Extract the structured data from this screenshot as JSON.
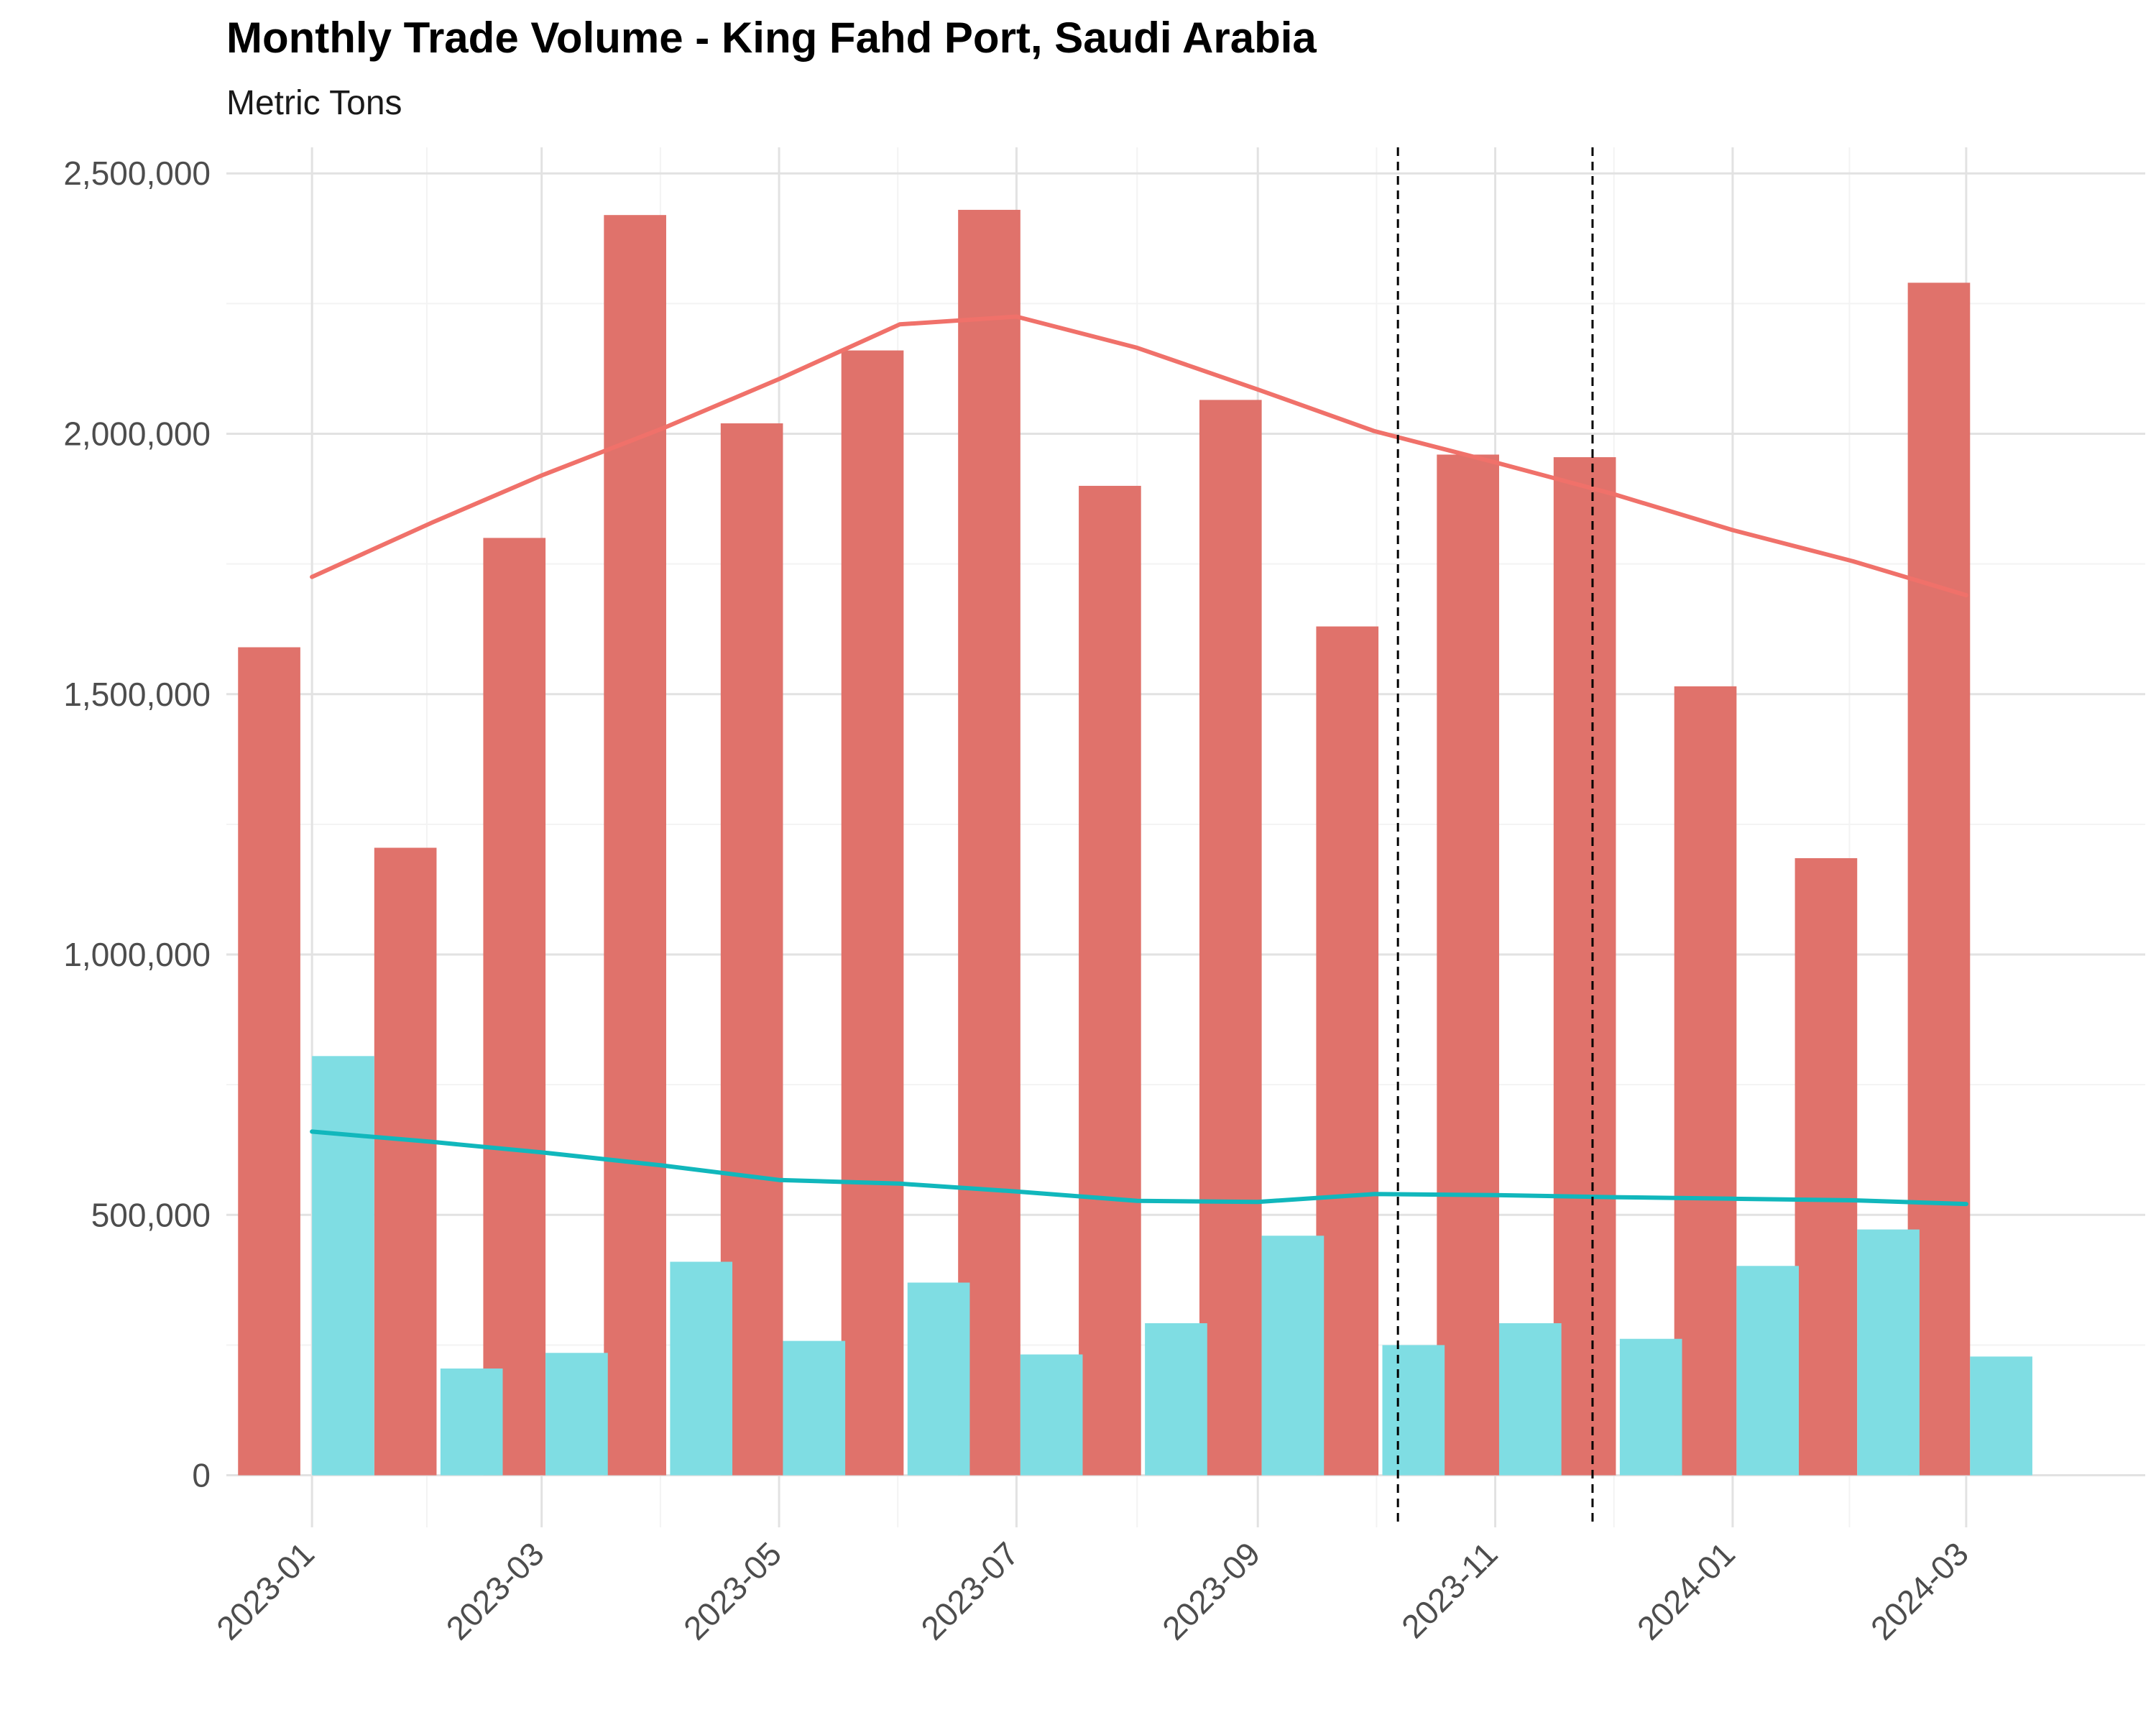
{
  "chart_data": {
    "type": "bar",
    "title": "Monthly Trade Volume - King Fahd Port, Saudi Arabia",
    "subtitle": "Metric Tons",
    "xlabel": "",
    "ylabel": "",
    "ylim": [
      -100000,
      2550000
    ],
    "yticks": [
      0,
      500000,
      1000000,
      1500000,
      2000000,
      2500000
    ],
    "ytick_labels": [
      "0",
      "500,000",
      "1,000,000",
      "1,500,000",
      "2,000,000",
      "2,500,000"
    ],
    "xlim": [
      "2022-12-10",
      "2024-04-16"
    ],
    "xticks": [
      "2023-01-01",
      "2023-03-01",
      "2023-05-01",
      "2023-07-01",
      "2023-09-01",
      "2023-11-01",
      "2024-01-01",
      "2024-03-01"
    ],
    "xtick_labels": [
      "2023-01",
      "2023-03",
      "2023-05",
      "2023-07",
      "2023-09",
      "2023-11",
      "2024-01",
      "2024-03"
    ],
    "grid": true,
    "legend": "none",
    "series": [
      {
        "color": "#e0726b",
        "bars": [
          {
            "date": "2022-12-21",
            "value": 1590000
          },
          {
            "date": "2023-01-25",
            "value": 1205000
          },
          {
            "date": "2023-02-22",
            "value": 1800000
          },
          {
            "date": "2023-03-25",
            "value": 2420000
          },
          {
            "date": "2023-04-24",
            "value": 2020000
          },
          {
            "date": "2023-05-25",
            "value": 2160000
          },
          {
            "date": "2023-06-24",
            "value": 2430000
          },
          {
            "date": "2023-07-25",
            "value": 1900000
          },
          {
            "date": "2023-08-25",
            "value": 2065000
          },
          {
            "date": "2023-09-24",
            "value": 1630000
          },
          {
            "date": "2023-10-25",
            "value": 1960000
          },
          {
            "date": "2023-11-24",
            "value": 1955000
          },
          {
            "date": "2023-12-25",
            "value": 1515000
          },
          {
            "date": "2024-01-25",
            "value": 1185000
          },
          {
            "date": "2024-02-23",
            "value": 2290000
          }
        ],
        "trend": [
          {
            "date": "2023-01-01",
            "value": 1725000
          },
          {
            "date": "2023-02-01",
            "value": 1830000
          },
          {
            "date": "2023-03-01",
            "value": 1920000
          },
          {
            "date": "2023-04-01",
            "value": 2010000
          },
          {
            "date": "2023-05-01",
            "value": 2105000
          },
          {
            "date": "2023-06-01",
            "value": 2210000
          },
          {
            "date": "2023-07-01",
            "value": 2225000
          },
          {
            "date": "2023-08-01",
            "value": 2165000
          },
          {
            "date": "2023-09-01",
            "value": 2085000
          },
          {
            "date": "2023-10-01",
            "value": 2005000
          },
          {
            "date": "2023-11-01",
            "value": 1945000
          },
          {
            "date": "2023-12-01",
            "value": 1885000
          },
          {
            "date": "2024-01-01",
            "value": 1815000
          },
          {
            "date": "2024-02-01",
            "value": 1755000
          },
          {
            "date": "2024-03-01",
            "value": 1690000
          }
        ]
      },
      {
        "color": "#7fdde3",
        "trend_color": "#11b7bc",
        "bars": [
          {
            "date": "2023-01-09",
            "value": 805000
          },
          {
            "date": "2023-02-11",
            "value": 205000
          },
          {
            "date": "2023-03-10",
            "value": 235000
          },
          {
            "date": "2023-04-11",
            "value": 410000
          },
          {
            "date": "2023-05-10",
            "value": 258000
          },
          {
            "date": "2023-06-11",
            "value": 370000
          },
          {
            "date": "2023-07-10",
            "value": 232000
          },
          {
            "date": "2023-08-11",
            "value": 292000
          },
          {
            "date": "2023-09-10",
            "value": 460000
          },
          {
            "date": "2023-10-11",
            "value": 250000
          },
          {
            "date": "2023-11-10",
            "value": 292000
          },
          {
            "date": "2023-12-11",
            "value": 262000
          },
          {
            "date": "2024-01-10",
            "value": 402000
          },
          {
            "date": "2024-02-10",
            "value": 472000
          },
          {
            "date": "2024-03-10",
            "value": 228000
          }
        ],
        "trend": [
          {
            "date": "2023-01-01",
            "value": 660000
          },
          {
            "date": "2023-02-01",
            "value": 640000
          },
          {
            "date": "2023-03-01",
            "value": 620000
          },
          {
            "date": "2023-04-01",
            "value": 595000
          },
          {
            "date": "2023-05-01",
            "value": 567000
          },
          {
            "date": "2023-06-01",
            "value": 560000
          },
          {
            "date": "2023-07-01",
            "value": 545000
          },
          {
            "date": "2023-08-01",
            "value": 527000
          },
          {
            "date": "2023-09-01",
            "value": 525000
          },
          {
            "date": "2023-10-01",
            "value": 540000
          },
          {
            "date": "2023-11-01",
            "value": 538000
          },
          {
            "date": "2023-12-01",
            "value": 534000
          },
          {
            "date": "2024-01-01",
            "value": 531000
          },
          {
            "date": "2024-02-01",
            "value": 528000
          },
          {
            "date": "2024-03-01",
            "value": 521000
          }
        ]
      }
    ],
    "vlines": [
      {
        "date": "2023-10-07",
        "style": "dashed",
        "color": "#000000"
      },
      {
        "date": "2023-11-26",
        "style": "dashed",
        "color": "#000000"
      }
    ]
  }
}
